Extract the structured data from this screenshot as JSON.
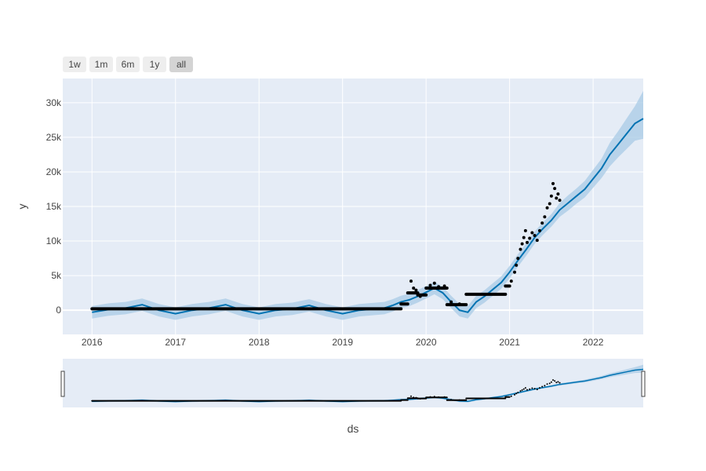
{
  "range_selector": {
    "buttons": [
      {
        "label": "1w",
        "active": false
      },
      {
        "label": "1m",
        "active": false
      },
      {
        "label": "6m",
        "active": false
      },
      {
        "label": "1y",
        "active": false
      },
      {
        "label": "all",
        "active": true
      }
    ]
  },
  "colors": {
    "plot_bg": "#e5ecf6",
    "grid": "#ffffff",
    "line": "#0072b2",
    "band": "#a8cbe6",
    "points": "#000000"
  },
  "chart_data": {
    "type": "line",
    "title": "",
    "xlabel": "ds",
    "ylabel": "y",
    "x_domain": [
      2015.65,
      2022.6
    ],
    "ylim": [
      -3500,
      33500
    ],
    "y_ticks": [
      0,
      5000,
      10000,
      15000,
      20000,
      25000,
      30000
    ],
    "y_tick_labels": [
      "0",
      "5k",
      "10k",
      "15k",
      "20k",
      "25k",
      "30k"
    ],
    "x_ticks": [
      2016,
      2017,
      2018,
      2019,
      2020,
      2021,
      2022
    ],
    "x_tick_labels": [
      "2016",
      "2017",
      "2018",
      "2019",
      "2020",
      "2021",
      "2022"
    ],
    "grid": true,
    "legend": "none",
    "forecast": {
      "name": "yhat",
      "x": [
        2016.0,
        2016.2,
        2016.4,
        2016.6,
        2016.8,
        2017.0,
        2017.2,
        2017.4,
        2017.6,
        2017.8,
        2018.0,
        2018.2,
        2018.4,
        2018.6,
        2018.8,
        2019.0,
        2019.2,
        2019.4,
        2019.5,
        2019.6,
        2019.7,
        2019.8,
        2019.9,
        2020.0,
        2020.1,
        2020.2,
        2020.3,
        2020.4,
        2020.5,
        2020.6,
        2020.7,
        2020.8,
        2020.9,
        2021.0,
        2021.1,
        2021.2,
        2021.3,
        2021.4,
        2021.5,
        2021.6,
        2021.7,
        2021.8,
        2021.9,
        2022.0,
        2022.1,
        2022.2,
        2022.3,
        2022.4,
        2022.5,
        2022.6
      ],
      "y": [
        -300,
        100,
        300,
        800,
        0,
        -500,
        0,
        300,
        800,
        0,
        -500,
        0,
        200,
        700,
        0,
        -500,
        0,
        200,
        300,
        700,
        1200,
        1500,
        2000,
        2600,
        3200,
        2500,
        1200,
        0,
        -300,
        1200,
        2000,
        3000,
        4000,
        5500,
        7200,
        8800,
        10500,
        11800,
        13000,
        14500,
        15500,
        16500,
        17500,
        19000,
        20500,
        22500,
        24000,
        25500,
        27000,
        27700
      ],
      "lower": [
        -1200,
        -800,
        -600,
        -100,
        -900,
        -1400,
        -900,
        -600,
        -100,
        -900,
        -1400,
        -900,
        -700,
        -200,
        -900,
        -1400,
        -900,
        -700,
        -600,
        -200,
        300,
        600,
        1100,
        1700,
        2300,
        1600,
        300,
        -900,
        -1200,
        300,
        1100,
        2100,
        3100,
        4600,
        6300,
        7900,
        9600,
        10900,
        12100,
        13500,
        14400,
        15400,
        16300,
        17700,
        19100,
        20800,
        22100,
        23300,
        24500,
        24800
      ],
      "upper": [
        600,
        1000,
        1200,
        1700,
        900,
        400,
        900,
        1200,
        1700,
        900,
        400,
        900,
        1100,
        1600,
        900,
        400,
        900,
        1100,
        1200,
        1600,
        2100,
        2400,
        2900,
        3500,
        4100,
        3400,
        2100,
        900,
        600,
        2100,
        2900,
        3900,
        4900,
        6400,
        8100,
        9700,
        11400,
        12700,
        13900,
        15500,
        16600,
        17600,
        18700,
        20300,
        21900,
        24200,
        25900,
        27700,
        29500,
        31700
      ]
    },
    "observed": {
      "name": "y",
      "segments": [
        {
          "x": [
            2016.0,
            2019.7
          ],
          "y": 200
        },
        {
          "x": [
            2019.7,
            2019.78
          ],
          "y": 900
        },
        {
          "x": [
            2019.78,
            2019.9
          ],
          "y": 2500
        },
        {
          "x": [
            2019.9,
            2020.0
          ],
          "y": 2200
        },
        {
          "x": [
            2020.0,
            2020.25
          ],
          "y": 3200
        },
        {
          "x": [
            2020.25,
            2020.48
          ],
          "y": 800
        },
        {
          "x": [
            2020.48,
            2020.95
          ],
          "y": 2300
        },
        {
          "x": [
            2020.95,
            2021.0
          ],
          "y": 3500
        }
      ],
      "points": [
        [
          2019.82,
          4200
        ],
        [
          2019.85,
          3200
        ],
        [
          2019.88,
          2900
        ],
        [
          2019.93,
          2000
        ],
        [
          2020.05,
          3600
        ],
        [
          2020.1,
          3900
        ],
        [
          2020.15,
          3400
        ],
        [
          2020.22,
          3500
        ],
        [
          2020.3,
          1200
        ],
        [
          2020.4,
          900
        ],
        [
          2021.02,
          4200
        ],
        [
          2021.06,
          5500
        ],
        [
          2021.08,
          6500
        ],
        [
          2021.1,
          7500
        ],
        [
          2021.13,
          8800
        ],
        [
          2021.15,
          9600
        ],
        [
          2021.17,
          10500
        ],
        [
          2021.19,
          11500
        ],
        [
          2021.21,
          9800
        ],
        [
          2021.24,
          10400
        ],
        [
          2021.27,
          11200
        ],
        [
          2021.3,
          10800
        ],
        [
          2021.33,
          10100
        ],
        [
          2021.36,
          11500
        ],
        [
          2021.39,
          12600
        ],
        [
          2021.42,
          13500
        ],
        [
          2021.45,
          14800
        ],
        [
          2021.48,
          15400
        ],
        [
          2021.5,
          16500
        ],
        [
          2021.52,
          18300
        ],
        [
          2021.54,
          17600
        ],
        [
          2021.56,
          16200
        ],
        [
          2021.58,
          16800
        ],
        [
          2021.6,
          15900
        ]
      ]
    }
  }
}
